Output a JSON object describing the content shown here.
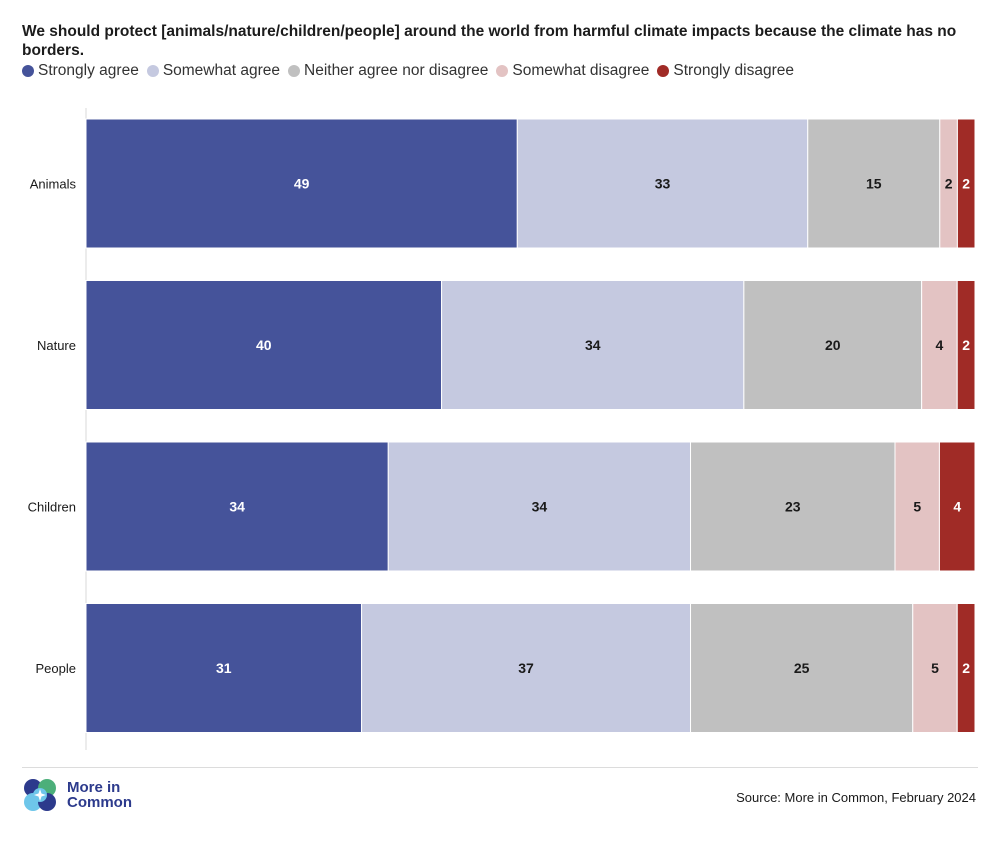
{
  "chart_data": {
    "type": "bar",
    "orientation": "horizontal",
    "stacked": true,
    "title": "We should protect [animals/nature/children/people] around the world from harmful climate impacts because the climate has no borders.",
    "categories": [
      "Animals",
      "Nature",
      "Children",
      "People"
    ],
    "series": [
      {
        "name": "Strongly agree",
        "color": "#45539a",
        "values": [
          49,
          40,
          34,
          31
        ]
      },
      {
        "name": "Somewhat agree",
        "color": "#c5c9e0",
        "values": [
          33,
          34,
          34,
          37
        ]
      },
      {
        "name": "Neither agree nor disagree",
        "color": "#c0c0c0",
        "values": [
          15,
          20,
          23,
          25
        ]
      },
      {
        "name": "Somewhat disagree",
        "color": "#e3c3c3",
        "values": [
          2,
          4,
          5,
          5
        ]
      },
      {
        "name": "Strongly disagree",
        "color": "#a02b26",
        "values": [
          2,
          2,
          4,
          2
        ]
      }
    ],
    "legend_position": "top-left",
    "grid": false
  },
  "footer": {
    "logo_line1": "More in",
    "logo_line2": "Common",
    "source": "Source: More in Common, February 2024"
  },
  "colors": {
    "logo_blue": "#2c3a8c",
    "logo_light": "#6ec6ea",
    "logo_green": "#4caf7a"
  }
}
